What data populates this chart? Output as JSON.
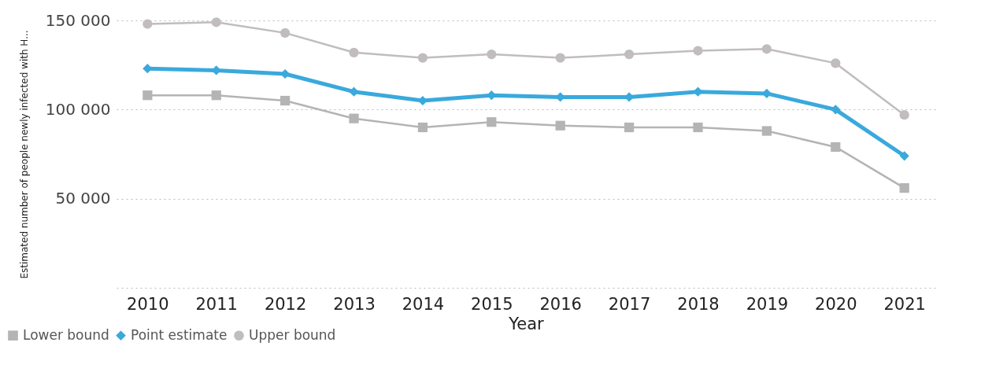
{
  "chart_data": {
    "type": "line",
    "xlabel": "Year",
    "ylabel": "Estimated number of people newly infected with H...",
    "categories": [
      "2010",
      "2011",
      "2012",
      "2013",
      "2014",
      "2015",
      "2016",
      "2017",
      "2018",
      "2019",
      "2020",
      "2021"
    ],
    "series": [
      {
        "name": "Lower bound",
        "color": "#b4b4b4",
        "marker": "square",
        "values": [
          108000,
          108000,
          105000,
          95000,
          90000,
          93000,
          91000,
          90000,
          90000,
          88000,
          79000,
          56000
        ]
      },
      {
        "name": "Point estimate",
        "color": "#3aa9dc",
        "marker": "diamond",
        "values": [
          123000,
          122000,
          120000,
          110000,
          105000,
          108000,
          107000,
          107000,
          110000,
          109000,
          100000,
          74000
        ]
      },
      {
        "name": "Upper bound",
        "color": "#c0bcbf",
        "marker": "circle",
        "values": [
          148000,
          149000,
          143000,
          132000,
          129000,
          131000,
          129000,
          131000,
          133000,
          134000,
          126000,
          97000
        ]
      }
    ],
    "ylim": [
      0,
      150000
    ],
    "yticks": [
      {
        "value": 0,
        "label": null
      },
      {
        "value": 50000,
        "label": "50 000"
      },
      {
        "value": 100000,
        "label": "100 000"
      },
      {
        "value": 150000,
        "label": "150 000"
      }
    ],
    "grid": "y",
    "legend": "bottom left"
  }
}
